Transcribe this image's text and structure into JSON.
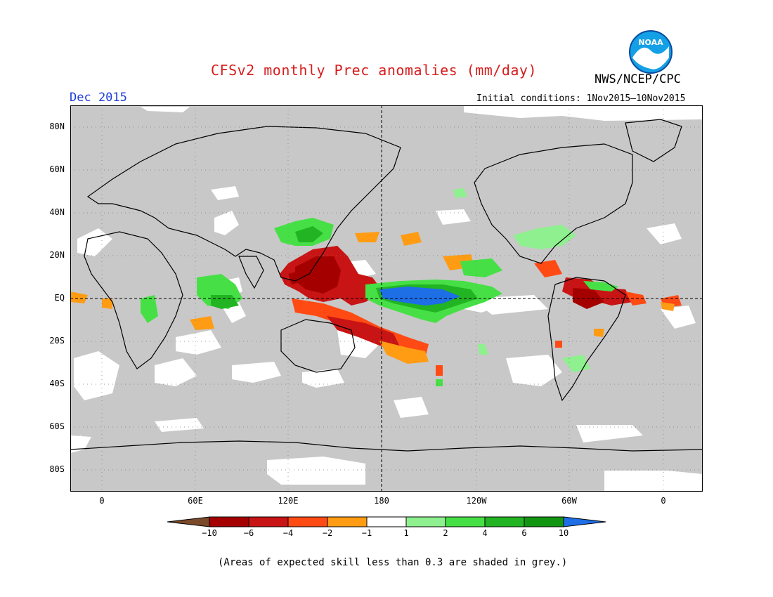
{
  "title": "CFSv2 monthly Prec anomalies (mm/day)",
  "organization": "NWS/NCEP/CPC",
  "logo_text": "NOAA",
  "target_month": "Dec 2015",
  "initial_conditions": "Initial conditions: 1Nov2015–10Nov2015",
  "lat_labels": [
    "80N",
    "60N",
    "40N",
    "20N",
    "EQ",
    "20S",
    "40S",
    "60S",
    "80S"
  ],
  "lon_labels": [
    "0",
    "60E",
    "120E",
    "180",
    "120W",
    "60W",
    "0"
  ],
  "colorbar": {
    "ticks": [
      "−10",
      "−6",
      "−4",
      "−2",
      "−1",
      "1",
      "2",
      "4",
      "6",
      "10"
    ],
    "colors": [
      "#7a4a2a",
      "#a50000",
      "#c81414",
      "#ff4a14",
      "#ff9c14",
      "#ffffff",
      "#8ef08e",
      "#46e046",
      "#22b422",
      "#129612",
      "#1e6ee6"
    ]
  },
  "legend": {
    "skill_mask_color": "#c8c8c8",
    "skill_threshold": 0.3
  },
  "note": "(Areas of expected skill less than 0.3 are shaded in grey.)"
}
